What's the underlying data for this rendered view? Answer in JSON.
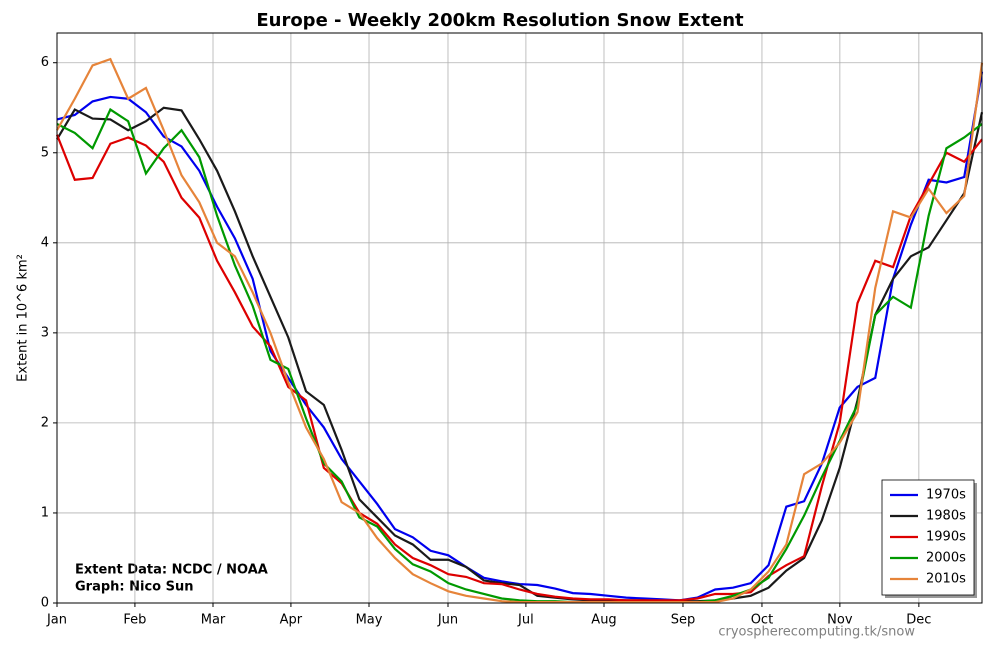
{
  "chart_data": {
    "type": "line",
    "title": "Europe - Weekly 200km Resolution Snow Extent",
    "ylabel": "Extent in 10^6 km²",
    "annotations": [
      "Extent Data: NCDC / NOAA",
      "Graph: Nico Sun",
      "cryospherecomputing.tk/snow"
    ],
    "x": [
      1,
      2,
      3,
      4,
      5,
      6,
      7,
      8,
      9,
      10,
      11,
      12,
      13,
      14,
      15,
      16,
      17,
      18,
      19,
      20,
      21,
      22,
      23,
      24,
      25,
      26,
      27,
      28,
      29,
      30,
      31,
      32,
      33,
      34,
      35,
      36,
      37,
      38,
      39,
      40,
      41,
      42,
      43,
      44,
      45,
      46,
      47,
      48,
      49,
      50,
      51,
      52,
      53
    ],
    "xlim": [
      1,
      53
    ],
    "xticks": [
      {
        "value": 1,
        "label": "Jan"
      },
      {
        "value": 5.38,
        "label": "Feb"
      },
      {
        "value": 9.77,
        "label": "Mar"
      },
      {
        "value": 14.15,
        "label": "Apr"
      },
      {
        "value": 18.54,
        "label": "May"
      },
      {
        "value": 22.98,
        "label": "Jun"
      },
      {
        "value": 27.36,
        "label": "Jul"
      },
      {
        "value": 31.75,
        "label": "Aug"
      },
      {
        "value": 36.19,
        "label": "Sep"
      },
      {
        "value": 40.63,
        "label": "Oct"
      },
      {
        "value": 45.01,
        "label": "Nov"
      },
      {
        "value": 49.45,
        "label": "Dec"
      }
    ],
    "ylim": [
      0,
      6.33
    ],
    "yticks": [
      0,
      1,
      2,
      3,
      4,
      5,
      6
    ],
    "grid": true,
    "legend": "lower right",
    "series": [
      {
        "name": "1970s",
        "color": "#0000ee",
        "values": [
          5.37,
          5.42,
          5.57,
          5.62,
          5.6,
          5.45,
          5.18,
          5.07,
          4.8,
          4.4,
          4.05,
          3.6,
          2.8,
          2.5,
          2.2,
          1.95,
          1.6,
          1.35,
          1.1,
          0.82,
          0.73,
          0.58,
          0.53,
          0.4,
          0.28,
          0.24,
          0.21,
          0.2,
          0.16,
          0.11,
          0.1,
          0.08,
          0.06,
          0.05,
          0.04,
          0.03,
          0.06,
          0.15,
          0.17,
          0.22,
          0.42,
          1.07,
          1.13,
          1.55,
          2.17,
          2.4,
          2.5,
          3.6,
          4.2,
          4.7,
          4.67,
          4.73,
          5.9
        ]
      },
      {
        "name": "1980s",
        "color": "#1a1a1a",
        "values": [
          5.15,
          5.48,
          5.38,
          5.37,
          5.25,
          5.35,
          5.5,
          5.47,
          5.15,
          4.8,
          4.35,
          3.85,
          3.4,
          2.95,
          2.35,
          2.2,
          1.7,
          1.15,
          0.95,
          0.75,
          0.65,
          0.48,
          0.48,
          0.4,
          0.25,
          0.22,
          0.2,
          0.08,
          0.06,
          0.04,
          0.03,
          0.03,
          0.03,
          0.03,
          0.02,
          0.02,
          0.02,
          0.03,
          0.05,
          0.08,
          0.17,
          0.36,
          0.5,
          0.92,
          1.5,
          2.25,
          3.2,
          3.6,
          3.85,
          3.95,
          4.25,
          4.55,
          5.45
        ]
      },
      {
        "name": "1990s",
        "color": "#dd0000",
        "values": [
          5.2,
          4.7,
          4.72,
          5.1,
          5.17,
          5.08,
          4.9,
          4.5,
          4.28,
          3.8,
          3.45,
          3.07,
          2.85,
          2.4,
          2.25,
          1.5,
          1.33,
          1.0,
          0.88,
          0.65,
          0.5,
          0.42,
          0.32,
          0.29,
          0.22,
          0.21,
          0.15,
          0.1,
          0.07,
          0.05,
          0.04,
          0.04,
          0.03,
          0.03,
          0.03,
          0.03,
          0.05,
          0.1,
          0.1,
          0.12,
          0.3,
          0.42,
          0.52,
          1.3,
          2.0,
          3.33,
          3.8,
          3.73,
          4.3,
          4.65,
          5.0,
          4.9,
          5.15
        ]
      },
      {
        "name": "2000s",
        "color": "#009900",
        "values": [
          5.32,
          5.22,
          5.05,
          5.48,
          5.35,
          4.77,
          5.05,
          5.25,
          4.95,
          4.3,
          3.75,
          3.3,
          2.7,
          2.6,
          2.05,
          1.55,
          1.35,
          0.95,
          0.85,
          0.6,
          0.43,
          0.35,
          0.22,
          0.15,
          0.1,
          0.05,
          0.03,
          0.02,
          0.02,
          0.01,
          0.01,
          0.01,
          0.01,
          0.01,
          0.01,
          0.01,
          0.01,
          0.03,
          0.08,
          0.15,
          0.28,
          0.6,
          0.97,
          1.4,
          1.8,
          2.2,
          3.2,
          3.4,
          3.28,
          4.3,
          5.05,
          5.17,
          5.32
        ]
      },
      {
        "name": "2010s",
        "color": "#e6843a",
        "values": [
          5.25,
          5.6,
          5.97,
          6.04,
          5.6,
          5.72,
          5.25,
          4.75,
          4.45,
          4.0,
          3.85,
          3.45,
          3.0,
          2.45,
          1.95,
          1.6,
          1.12,
          1.0,
          0.72,
          0.5,
          0.32,
          0.22,
          0.13,
          0.08,
          0.05,
          0.02,
          0.01,
          0.01,
          0.01,
          0.01,
          0.01,
          0.01,
          0.01,
          0.01,
          0.01,
          0.01,
          0.01,
          0.01,
          0.05,
          0.15,
          0.35,
          0.65,
          1.43,
          1.55,
          1.78,
          2.12,
          3.5,
          4.35,
          4.28,
          4.6,
          4.33,
          4.52,
          6.0
        ]
      }
    ]
  }
}
